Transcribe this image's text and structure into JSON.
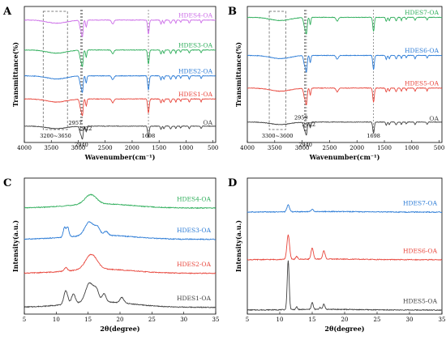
{
  "panels": [
    {
      "id": "A",
      "type": "line",
      "label": "A",
      "xlabel": "Wavenumber(cm⁻¹)",
      "ylabel": "Transmittance(%)",
      "x_ticks": [
        4000,
        3500,
        3000,
        2500,
        2000,
        1500,
        1000,
        500
      ],
      "xlim": [
        4000,
        450
      ],
      "series": [
        {
          "name": "OA",
          "color": "#404040",
          "offset": 0.06,
          "style": "ftir"
        },
        {
          "name": "HDES1-OA",
          "color": "#e8463c",
          "offset": 0.26,
          "style": "ftir"
        },
        {
          "name": "HDES2-OA",
          "color": "#2b7bd6",
          "offset": 0.43,
          "style": "ftir"
        },
        {
          "name": "HDES3-OA",
          "color": "#2fae5b",
          "offset": 0.62,
          "style": "ftir"
        },
        {
          "name": "HDES4-OA",
          "color": "#cc6de8",
          "offset": 0.84,
          "style": "ftir"
        }
      ],
      "annotations": [
        {
          "text": "3200~3650",
          "x": 3420,
          "y": 0.005
        },
        {
          "text": "2957",
          "x": 3055,
          "y": 0.1
        },
        {
          "text": "2922",
          "x": 2870,
          "y": 0.06
        },
        {
          "text": "2940",
          "x": 2940,
          "y": -0.06
        },
        {
          "text": "1698",
          "x": 1698,
          "y": 0.005
        }
      ],
      "dashed_box": [
        3650,
        3200
      ],
      "markers": [
        2957,
        2940,
        2922,
        1698
      ]
    },
    {
      "id": "B",
      "type": "line",
      "label": "B",
      "xlabel": "Wavenumber(cm⁻¹)",
      "ylabel": "Transmittance(%)",
      "x_ticks": [
        4000,
        3500,
        3000,
        2500,
        2000,
        1500,
        1000,
        500
      ],
      "xlim": [
        4000,
        450
      ],
      "series": [
        {
          "name": "OA",
          "color": "#404040",
          "offset": 0.09,
          "style": "ftir"
        },
        {
          "name": "HDES5-OA",
          "color": "#e8463c",
          "offset": 0.34,
          "style": "ftir"
        },
        {
          "name": "HDES6-OA",
          "color": "#2b7bd6",
          "offset": 0.58,
          "style": "ftir"
        },
        {
          "name": "HDES7-OA",
          "color": "#2fae5b",
          "offset": 0.86,
          "style": "ftir"
        }
      ],
      "annotations": [
        {
          "text": "3300~3600",
          "x": 3450,
          "y": 0.005
        },
        {
          "text": "2959",
          "x": 3020,
          "y": 0.14
        },
        {
          "text": "2922",
          "x": 2880,
          "y": 0.09
        },
        {
          "text": "2940",
          "x": 2940,
          "y": -0.06
        },
        {
          "text": "1698",
          "x": 1698,
          "y": 0.005
        }
      ],
      "dashed_box": [
        3600,
        3300
      ],
      "markers": [
        2959,
        2940,
        2922,
        1698
      ]
    },
    {
      "id": "C",
      "type": "line",
      "label": "C",
      "xlabel": "2θ(degree)",
      "ylabel": "Intensity(a.u.)",
      "x_ticks": [
        5,
        10,
        15,
        20,
        25,
        30,
        35
      ],
      "xlim": [
        5,
        35
      ],
      "series": [
        {
          "name": "HDES1-OA",
          "color": "#404040",
          "offset": 0.05,
          "style": "xrd1"
        },
        {
          "name": "HDES2-OA",
          "color": "#e8463c",
          "offset": 0.3,
          "style": "xrd2"
        },
        {
          "name": "HDES3-OA",
          "color": "#2b7bd6",
          "offset": 0.55,
          "style": "xrd3"
        },
        {
          "name": "HDES4-OA",
          "color": "#2fae5b",
          "offset": 0.78,
          "style": "xrd4"
        }
      ]
    },
    {
      "id": "D",
      "type": "line",
      "label": "D",
      "xlabel": "2θ(degree)",
      "ylabel": "Intensity(a.u.)",
      "x_ticks": [
        5,
        10,
        15,
        20,
        25,
        30,
        35
      ],
      "xlim": [
        5,
        35
      ],
      "series": [
        {
          "name": "HDES5-OA",
          "color": "#404040",
          "offset": 0.03,
          "style": "xrd5"
        },
        {
          "name": "HDES6-OA",
          "color": "#e8463c",
          "offset": 0.4,
          "style": "xrd6"
        },
        {
          "name": "HDES7-OA",
          "color": "#2b7bd6",
          "offset": 0.75,
          "style": "xrd7"
        }
      ]
    }
  ]
}
